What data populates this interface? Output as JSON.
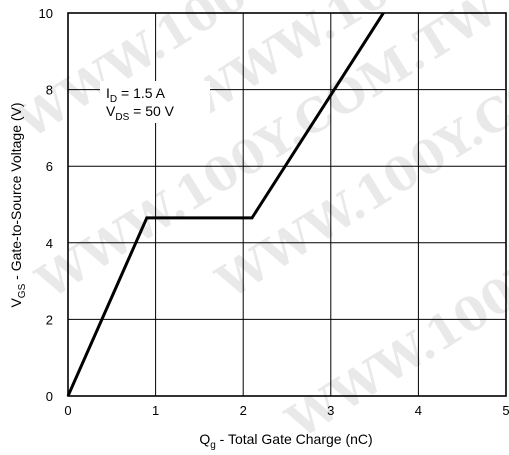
{
  "chart_data": {
    "type": "line",
    "xlabel": {
      "main": "Q",
      "sub": "g",
      "rest": " - Total Gate Charge (nC)"
    },
    "ylabel": {
      "main": "V",
      "sub": "GS",
      "rest": " - Gate-to-Source Voltage (V)"
    },
    "xlim": [
      0,
      5
    ],
    "ylim": [
      0,
      10
    ],
    "xticks": [
      0,
      1,
      2,
      3,
      4,
      5
    ],
    "yticks": [
      0,
      2,
      4,
      6,
      8,
      10
    ],
    "grid": true,
    "series": [
      {
        "x": [
          0,
          0.9,
          2.1,
          3.6
        ],
        "y": [
          0,
          4.65,
          4.65,
          10
        ]
      }
    ],
    "annotations": [
      {
        "main": "I",
        "sub": "D",
        "rest": " = 1.5 A"
      },
      {
        "main": "V",
        "sub": "DS",
        "rest": " = 50 V"
      }
    ],
    "watermark": "WWW.100Y.COM.TW"
  }
}
